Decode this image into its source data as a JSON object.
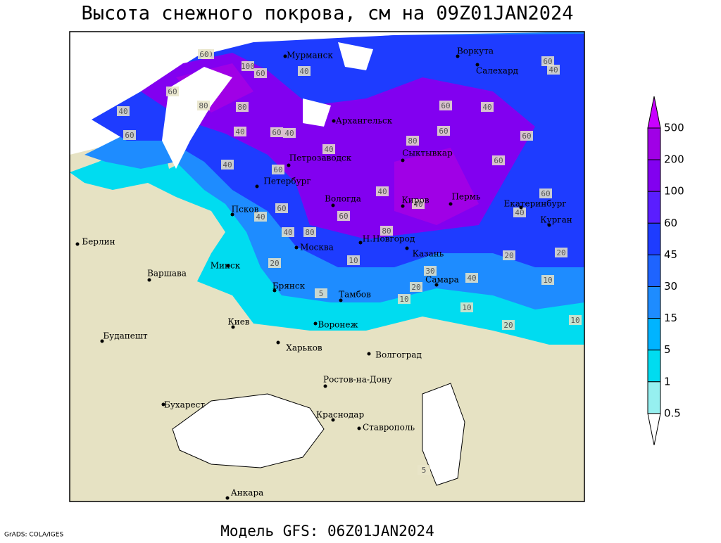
{
  "title": "Высота снежного покрова, см на 09Z01JAN2024",
  "footer": "Модель GFS: 06Z01JAN2024",
  "credit": "GrADS: COLA/IGES",
  "legend": {
    "levels": [
      500,
      200,
      100,
      60,
      45,
      30,
      15,
      5,
      1,
      0.5
    ],
    "colors": [
      "#c800ff",
      "#a000e6",
      "#8200f0",
      "#5a1eff",
      "#1e3cff",
      "#1e64ff",
      "#1e8cff",
      "#00b4ff",
      "#00dcf0",
      "#96f0f0",
      "#ffffff"
    ]
  },
  "cities": [
    "Мурманск",
    "Воркута",
    "Салехард",
    "Архангельск",
    "Сыктывкар",
    "Петрозаводск",
    "Петербург",
    "Вологда",
    "Киров",
    "Пермь",
    "Екатеринбург",
    "Курган",
    "Псков",
    "Н.Новгород",
    "Москва",
    "Казань",
    "Берлин",
    "Варшава",
    "Минск",
    "Брянск",
    "Тамбов",
    "Самара",
    "Киев",
    "Воронеж",
    "Харьков",
    "Волгоград",
    "Будапешт",
    "Ростов-на-Дону",
    "Бухарест",
    "Краснодар",
    "Ставрополь",
    "Анкара"
  ],
  "contour_labels": [
    40,
    100,
    60,
    40,
    60,
    80,
    60,
    40,
    80,
    40,
    60,
    60,
    40,
    40,
    40,
    60,
    80,
    60,
    60,
    40,
    40,
    60,
    60,
    40,
    80,
    80,
    60,
    60,
    40,
    40,
    60,
    60,
    40,
    40,
    20,
    20,
    20,
    10,
    10,
    5,
    10,
    20,
    30,
    40,
    20,
    10,
    10,
    5
  ]
}
